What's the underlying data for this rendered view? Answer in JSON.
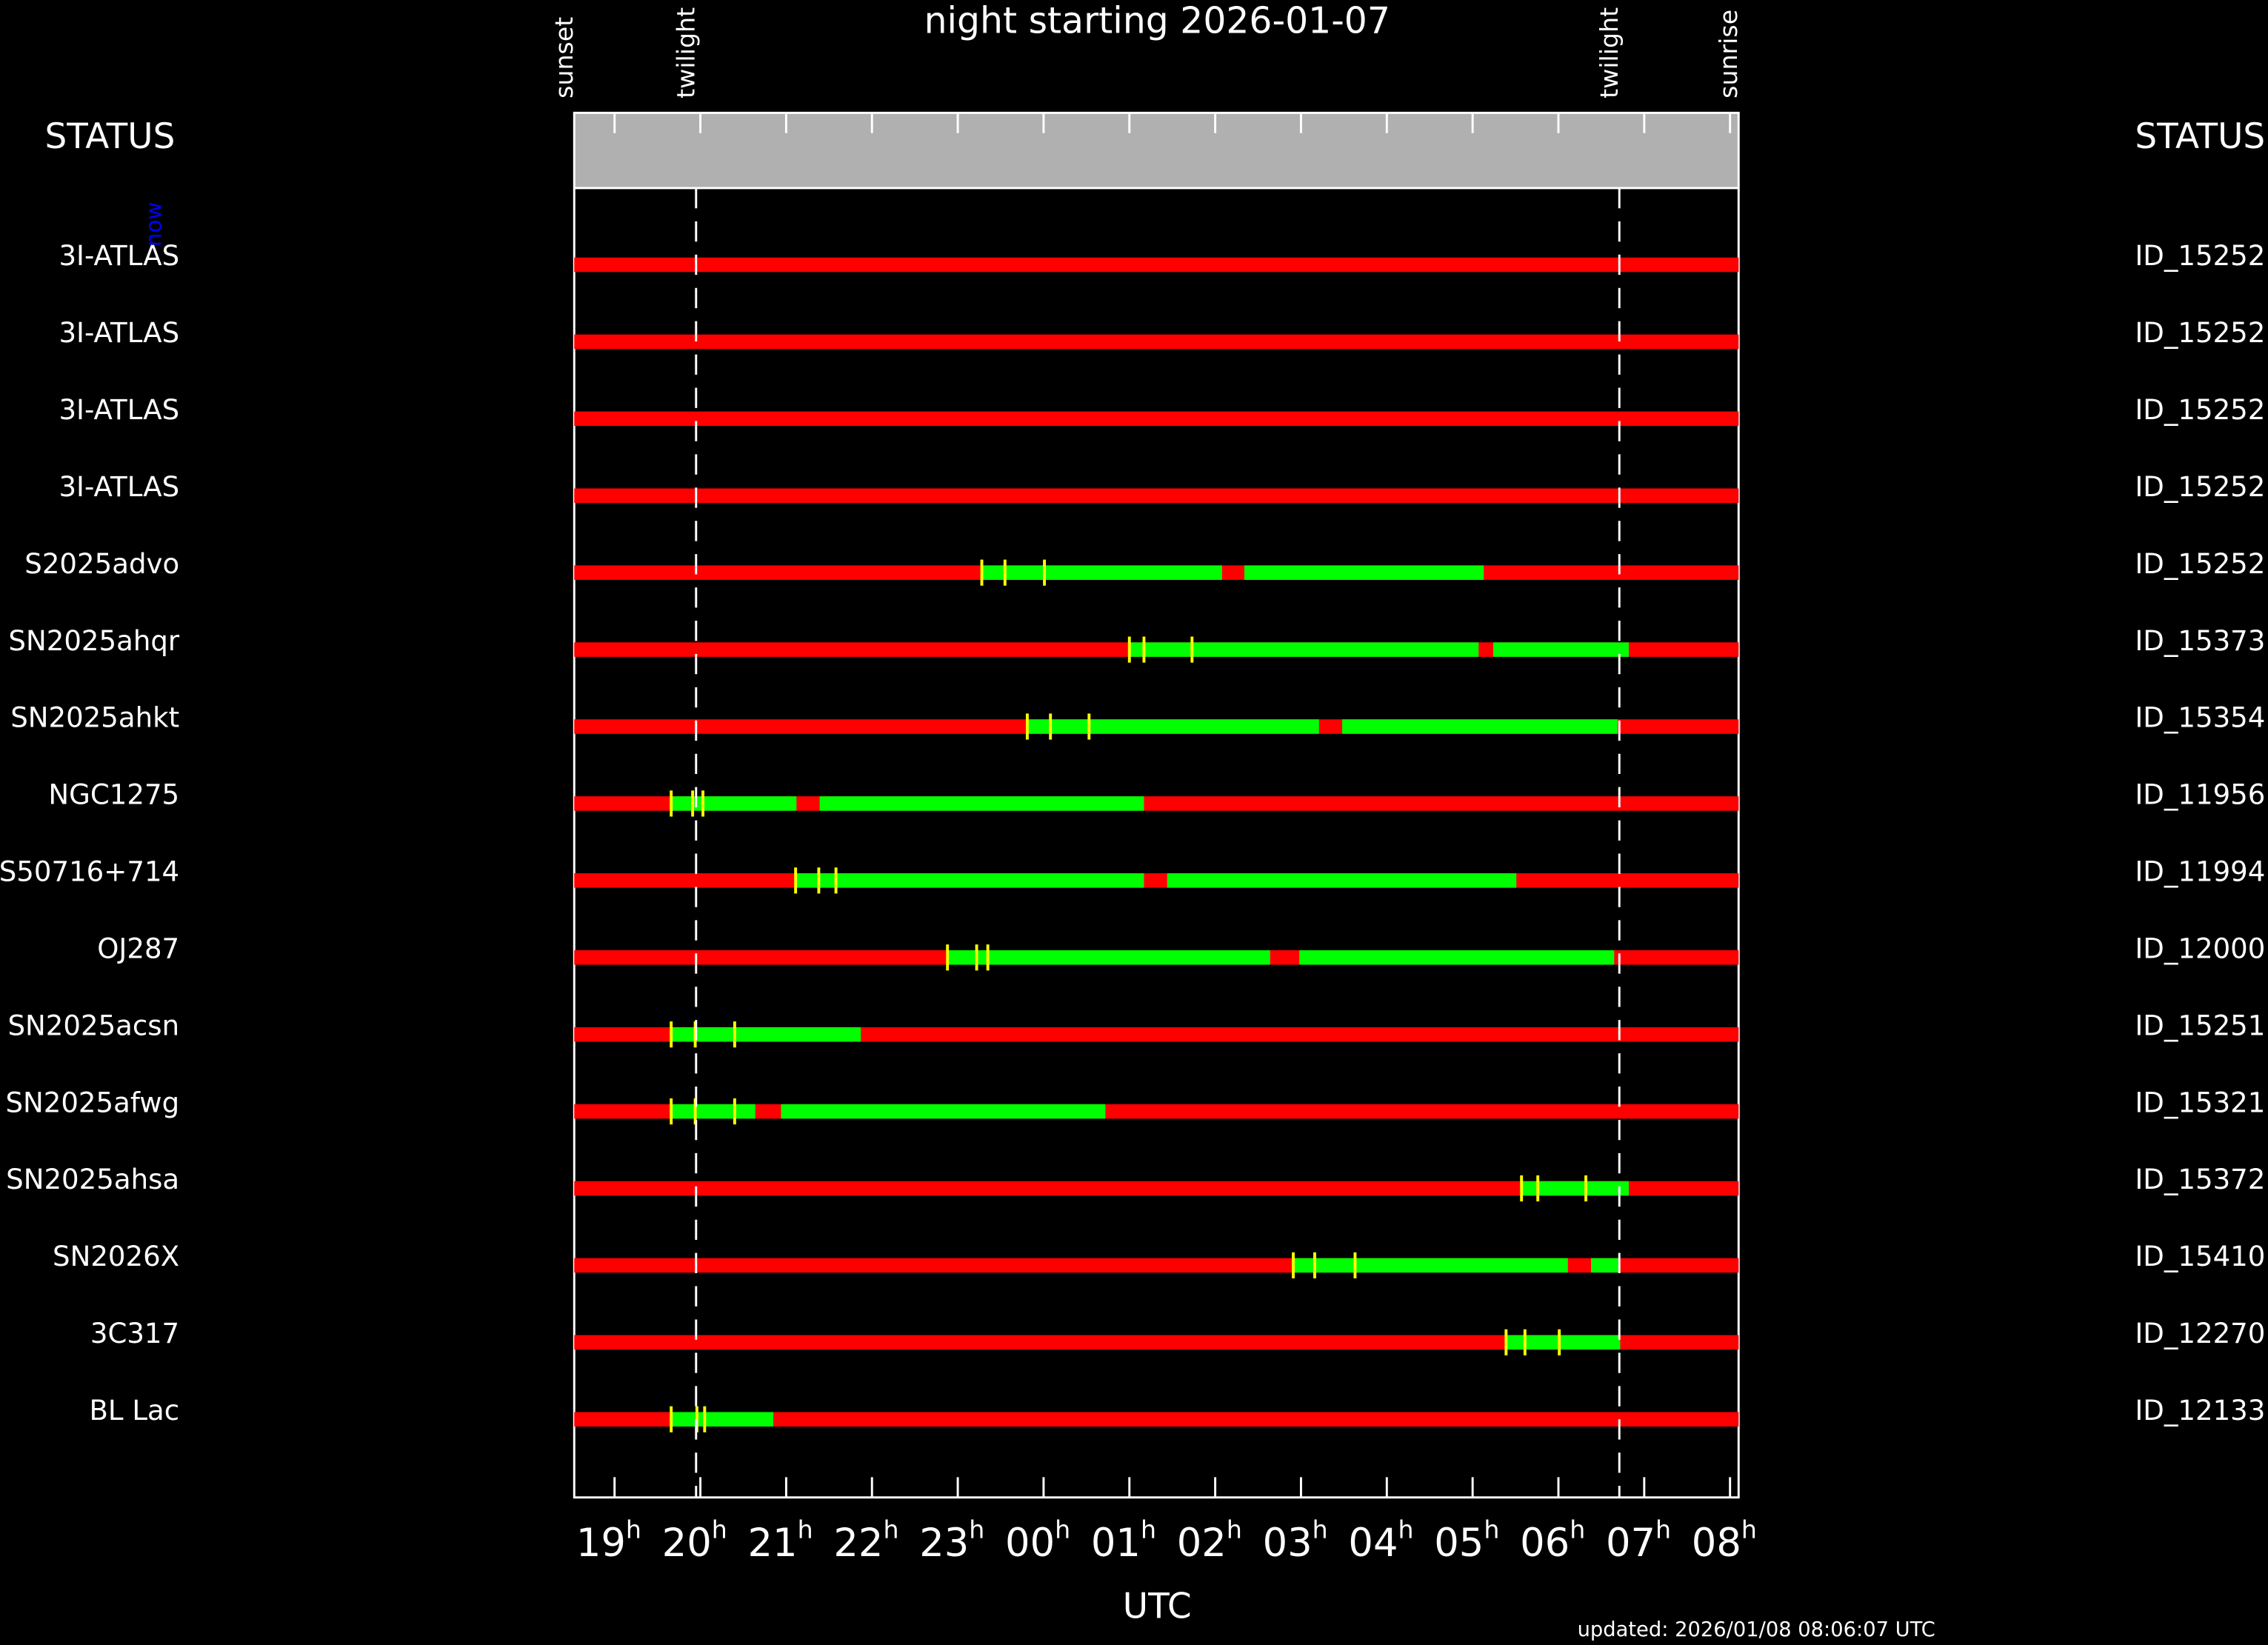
{
  "chart_data": {
    "type": "gantt",
    "title": "night starting 2026-01-07",
    "xlabel": "UTC",
    "footer": "updated: 2026/01/08 08:06:07 UTC",
    "status_left": "STATUS",
    "status_right": "STATUS",
    "now_label": "now",
    "xtick_unit": "h",
    "xlim": [
      18.53,
      32.1
    ],
    "xticks": [
      19,
      20,
      21,
      22,
      23,
      {
        "value": 24,
        "label": "00"
      },
      {
        "value": 25,
        "label": "01"
      },
      {
        "value": 26,
        "label": "02"
      },
      {
        "value": 27,
        "label": "03"
      },
      {
        "value": 28,
        "label": "04"
      },
      {
        "value": 29,
        "label": "05"
      },
      {
        "value": 30,
        "label": "06"
      },
      {
        "value": 31,
        "label": "07"
      },
      {
        "value": 32,
        "label": "08"
      }
    ],
    "markers": [
      {
        "label": "sunset",
        "value": 18.53
      },
      {
        "label": "twilight",
        "value": 19.95
      },
      {
        "label": "twilight",
        "value": 30.71
      },
      {
        "label": "sunrise",
        "value": 32.1
      }
    ],
    "bar_color": "#ff0000",
    "window_color": "#00ff00",
    "tick_color": "#ffff00",
    "rows": [
      {
        "name": "3I-ATLAS",
        "id": "ID_15252",
        "segments": [],
        "ticks": []
      },
      {
        "name": "3I-ATLAS",
        "id": "ID_15252",
        "segments": [],
        "ticks": []
      },
      {
        "name": "3I-ATLAS",
        "id": "ID_15252",
        "segments": [],
        "ticks": []
      },
      {
        "name": "3I-ATLAS",
        "id": "ID_15252",
        "segments": [],
        "ticks": []
      },
      {
        "name": "S2025advo",
        "id": "ID_15252",
        "segments": [
          [
            23.28,
            26.08
          ],
          [
            26.34,
            29.13
          ]
        ],
        "ticks": [
          23.28,
          23.55,
          24.01
        ]
      },
      {
        "name": "SN2025ahqr",
        "id": "ID_15373",
        "segments": [
          [
            25.0,
            29.07
          ],
          [
            29.24,
            30.82
          ]
        ],
        "ticks": [
          25.0,
          25.17,
          25.73
        ]
      },
      {
        "name": "SN2025ahkt",
        "id": "ID_15354",
        "segments": [
          [
            23.81,
            27.21
          ],
          [
            27.48,
            30.69
          ]
        ],
        "ticks": [
          23.81,
          24.08,
          24.53
        ]
      },
      {
        "name": "NGC1275",
        "id": "ID_11956",
        "segments": [
          [
            19.66,
            21.12
          ],
          [
            21.39,
            25.17
          ]
        ],
        "ticks": [
          19.66,
          19.91,
          20.03
        ]
      },
      {
        "name": "S50716+714",
        "id": "ID_11994",
        "segments": [
          [
            21.11,
            25.17
          ],
          [
            25.44,
            29.51
          ]
        ],
        "ticks": [
          21.11,
          21.38,
          21.58
        ]
      },
      {
        "name": "OJ287",
        "id": "ID_12000",
        "segments": [
          [
            22.88,
            26.64
          ],
          [
            26.98,
            30.65
          ]
        ],
        "ticks": [
          22.88,
          23.22,
          23.35
        ]
      },
      {
        "name": "SN2025acsn",
        "id": "ID_15251",
        "segments": [
          [
            19.66,
            21.87
          ]
        ],
        "ticks": [
          19.66,
          19.94,
          20.4
        ]
      },
      {
        "name": "SN2025afwg",
        "id": "ID_15321",
        "segments": [
          [
            19.66,
            20.64
          ],
          [
            20.94,
            24.72
          ]
        ],
        "ticks": [
          19.66,
          19.94,
          20.4
        ]
      },
      {
        "name": "SN2025ahsa",
        "id": "ID_15372",
        "segments": [
          [
            29.57,
            30.82
          ]
        ],
        "ticks": [
          29.57,
          29.76,
          30.32
        ]
      },
      {
        "name": "SN2026X",
        "id": "ID_15410",
        "segments": [
          [
            26.91,
            30.11
          ],
          [
            30.38,
            30.7
          ]
        ],
        "ticks": [
          26.91,
          27.16,
          27.63
        ]
      },
      {
        "name": "3C317",
        "id": "ID_12270",
        "segments": [
          [
            29.39,
            30.72
          ]
        ],
        "ticks": [
          29.39,
          29.61,
          30.01
        ]
      },
      {
        "name": "BL Lac",
        "id": "ID_12133",
        "segments": [
          [
            19.66,
            20.85
          ]
        ],
        "ticks": [
          19.66,
          19.96,
          20.05
        ]
      }
    ]
  }
}
